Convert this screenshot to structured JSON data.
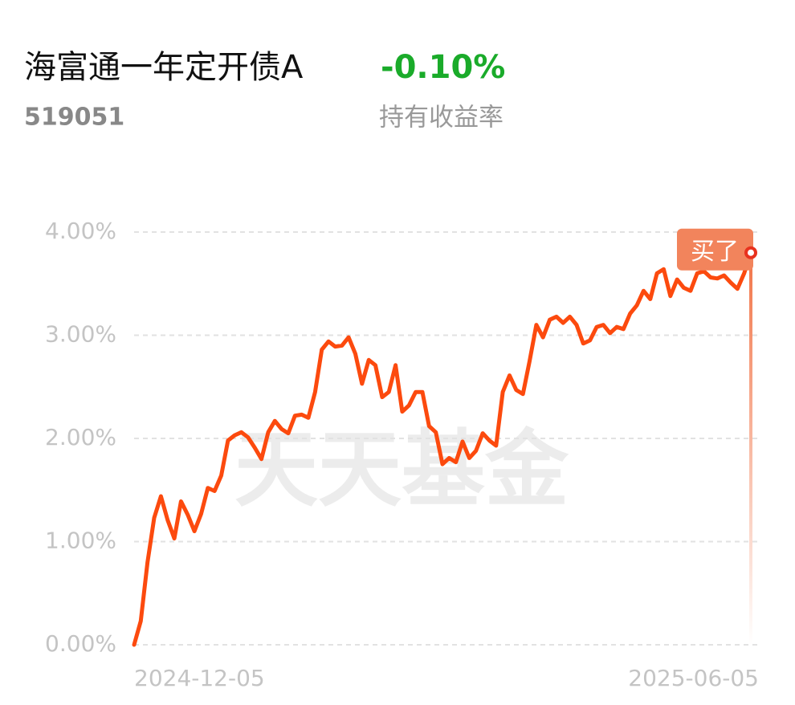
{
  "header": {
    "title": "海富通一年定开债A",
    "return": "-0.10%",
    "code": "519051",
    "return_label": "持有收益率"
  },
  "watermark": "天天基金",
  "chart_data": {
    "type": "line",
    "annotation": "买了",
    "categories": [
      "2024-12-05",
      null,
      null,
      null,
      null,
      null,
      null,
      null,
      null,
      null,
      null,
      null,
      null,
      null,
      null,
      null,
      null,
      null,
      null,
      null,
      null,
      null,
      null,
      null,
      null,
      null,
      null,
      null,
      null,
      null,
      null,
      null,
      null,
      null,
      null,
      null,
      null,
      null,
      null,
      null,
      null,
      null,
      null,
      null,
      null,
      null,
      null,
      null,
      null,
      null,
      null,
      null,
      null,
      null,
      null,
      null,
      null,
      null,
      null,
      null,
      null,
      null,
      null,
      null,
      null,
      null,
      null,
      null,
      null,
      null,
      null,
      null,
      null,
      null,
      null,
      null,
      null,
      null,
      null,
      null,
      null,
      null,
      null,
      null,
      null,
      null,
      null,
      null,
      null,
      null,
      null,
      null,
      "2025-06-05"
    ],
    "series": [
      {
        "color": "#fc4a0e",
        "values": [
          0,
          0.23,
          0.8,
          1.23,
          1.44,
          1.21,
          1.03,
          1.39,
          1.26,
          1.1,
          1.27,
          1.52,
          1.49,
          1.64,
          1.98,
          2.03,
          2.06,
          2.01,
          1.91,
          1.8,
          2.06,
          2.17,
          2.09,
          2.05,
          2.22,
          2.23,
          2.2,
          2.45,
          2.86,
          2.94,
          2.89,
          2.9,
          2.98,
          2.82,
          2.53,
          2.76,
          2.71,
          2.4,
          2.45,
          2.71,
          2.26,
          2.32,
          2.45,
          2.45,
          2.12,
          2.06,
          1.75,
          1.81,
          1.77,
          1.97,
          1.81,
          1.88,
          2.05,
          1.98,
          1.93,
          2.45,
          2.61,
          2.47,
          2.43,
          2.75,
          3.1,
          2.98,
          3.15,
          3.18,
          3.12,
          3.18,
          3.1,
          2.92,
          2.95,
          3.08,
          3.1,
          3.02,
          3.08,
          3.06,
          3.21,
          3.29,
          3.43,
          3.35,
          3.6,
          3.64,
          3.38,
          3.54,
          3.46,
          3.43,
          3.6,
          3.62,
          3.56,
          3.55,
          3.58,
          3.51,
          3.45,
          3.6,
          3.8
        ]
      }
    ],
    "ylim": [
      0,
      4
    ],
    "yticks": [
      {
        "value": 0,
        "label": "0.00%"
      },
      {
        "value": 1,
        "label": "1.00%"
      },
      {
        "value": 2,
        "label": "2.00%"
      },
      {
        "value": 3,
        "label": "3.00%"
      },
      {
        "value": 4,
        "label": "4.00%"
      }
    ],
    "grid": true
  }
}
